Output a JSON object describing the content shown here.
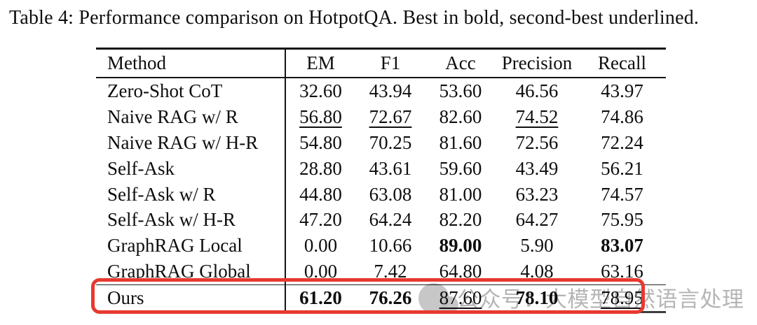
{
  "caption": "Table 4: Performance comparison on HotpotQA. Best in bold, second-best underlined.",
  "table": {
    "headers": [
      "Method",
      "EM",
      "F1",
      "Acc",
      "Precision",
      "Recall"
    ],
    "rows": [
      {
        "method": "Zero-Shot CoT",
        "highlight": false,
        "cells": [
          {
            "v": "32.60"
          },
          {
            "v": "43.94"
          },
          {
            "v": "53.60"
          },
          {
            "v": "46.56"
          },
          {
            "v": "43.97"
          }
        ]
      },
      {
        "method": "Naive RAG w/ R",
        "highlight": false,
        "cells": [
          {
            "v": "56.80",
            "u": true
          },
          {
            "v": "72.67",
            "u": true
          },
          {
            "v": "82.60"
          },
          {
            "v": "74.52",
            "u": true
          },
          {
            "v": "74.86"
          }
        ]
      },
      {
        "method": "Naive RAG w/ H-R",
        "highlight": false,
        "cells": [
          {
            "v": "54.80"
          },
          {
            "v": "70.25"
          },
          {
            "v": "81.60"
          },
          {
            "v": "72.56"
          },
          {
            "v": "72.24"
          }
        ]
      },
      {
        "method": "Self-Ask",
        "highlight": false,
        "cells": [
          {
            "v": "28.80"
          },
          {
            "v": "43.61"
          },
          {
            "v": "59.60"
          },
          {
            "v": "43.49"
          },
          {
            "v": "56.21"
          }
        ]
      },
      {
        "method": "Self-Ask w/ R",
        "highlight": false,
        "cells": [
          {
            "v": "44.80"
          },
          {
            "v": "63.08"
          },
          {
            "v": "81.00"
          },
          {
            "v": "63.23"
          },
          {
            "v": "74.57"
          }
        ]
      },
      {
        "method": "Self-Ask w/ H-R",
        "highlight": false,
        "cells": [
          {
            "v": "47.20"
          },
          {
            "v": "64.24"
          },
          {
            "v": "82.20"
          },
          {
            "v": "64.27"
          },
          {
            "v": "75.95"
          }
        ]
      },
      {
        "method": "GraphRAG Local",
        "highlight": false,
        "cells": [
          {
            "v": "0.00"
          },
          {
            "v": "10.66"
          },
          {
            "v": "89.00",
            "b": true
          },
          {
            "v": "5.90"
          },
          {
            "v": "83.07",
            "b": true
          }
        ]
      },
      {
        "method": "GraphRAG Global",
        "highlight": false,
        "cells": [
          {
            "v": "0.00"
          },
          {
            "v": "7.42"
          },
          {
            "v": "64.80"
          },
          {
            "v": "4.08"
          },
          {
            "v": "63.16"
          }
        ]
      },
      {
        "method": "Ours",
        "highlight": true,
        "cells": [
          {
            "v": "61.20",
            "b": true
          },
          {
            "v": "76.26",
            "b": true
          },
          {
            "v": "87.60",
            "u": true
          },
          {
            "v": "78.10",
            "b": true
          },
          {
            "v": "78.95",
            "u": true
          }
        ]
      }
    ]
  },
  "annotation": {
    "shape": "rounded-rectangle",
    "color": "#e8392f",
    "target_row": "Ours"
  },
  "watermark": {
    "text": "公众号：大模型自然语言处理",
    "color": "#b5b5b5"
  },
  "colors": {
    "text": "#0e0e0e",
    "rule": "#141414",
    "background": "#ffffff"
  }
}
